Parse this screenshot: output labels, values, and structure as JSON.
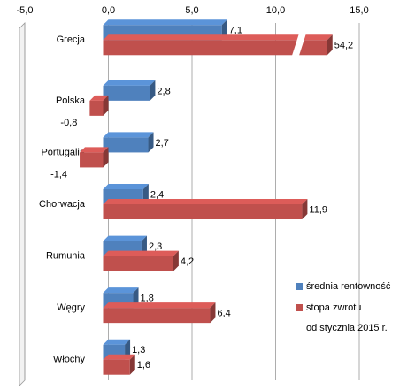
{
  "chart_data": {
    "type": "bar",
    "orientation": "horizontal",
    "categories": [
      "Grecja",
      "Polska",
      "Portugalia",
      "Chorwacja",
      "Rumunia",
      "Węgry",
      "Włochy"
    ],
    "series": [
      {
        "name": "średnia rentowność",
        "color": "#4f81bd",
        "values": [
          7.1,
          2.8,
          2.7,
          2.4,
          2.3,
          1.8,
          1.3
        ],
        "value_labels": [
          "7,1",
          "2,8",
          "2,7",
          "2,4",
          "2,3",
          "1,8",
          "1,3"
        ]
      },
      {
        "name": "stopa zwrotu",
        "color": "#c0504d",
        "values": [
          54.2,
          -0.8,
          -1.4,
          11.9,
          4.2,
          6.4,
          1.6
        ],
        "value_labels": [
          "54,2",
          "-0,8",
          "-1,4",
          "11,9",
          "4,2",
          "6,4",
          "1,6"
        ]
      }
    ],
    "xlim": [
      -5,
      15
    ],
    "xticks": [
      {
        "value": -5,
        "label": "-5,0"
      },
      {
        "value": 0,
        "label": "0,0"
      },
      {
        "value": 5,
        "label": "5,0"
      },
      {
        "value": 10,
        "label": "10,0"
      },
      {
        "value": 15,
        "label": "15,0"
      }
    ],
    "grid": true,
    "legend": "right",
    "annotation": "od stycznia 2015 r."
  }
}
